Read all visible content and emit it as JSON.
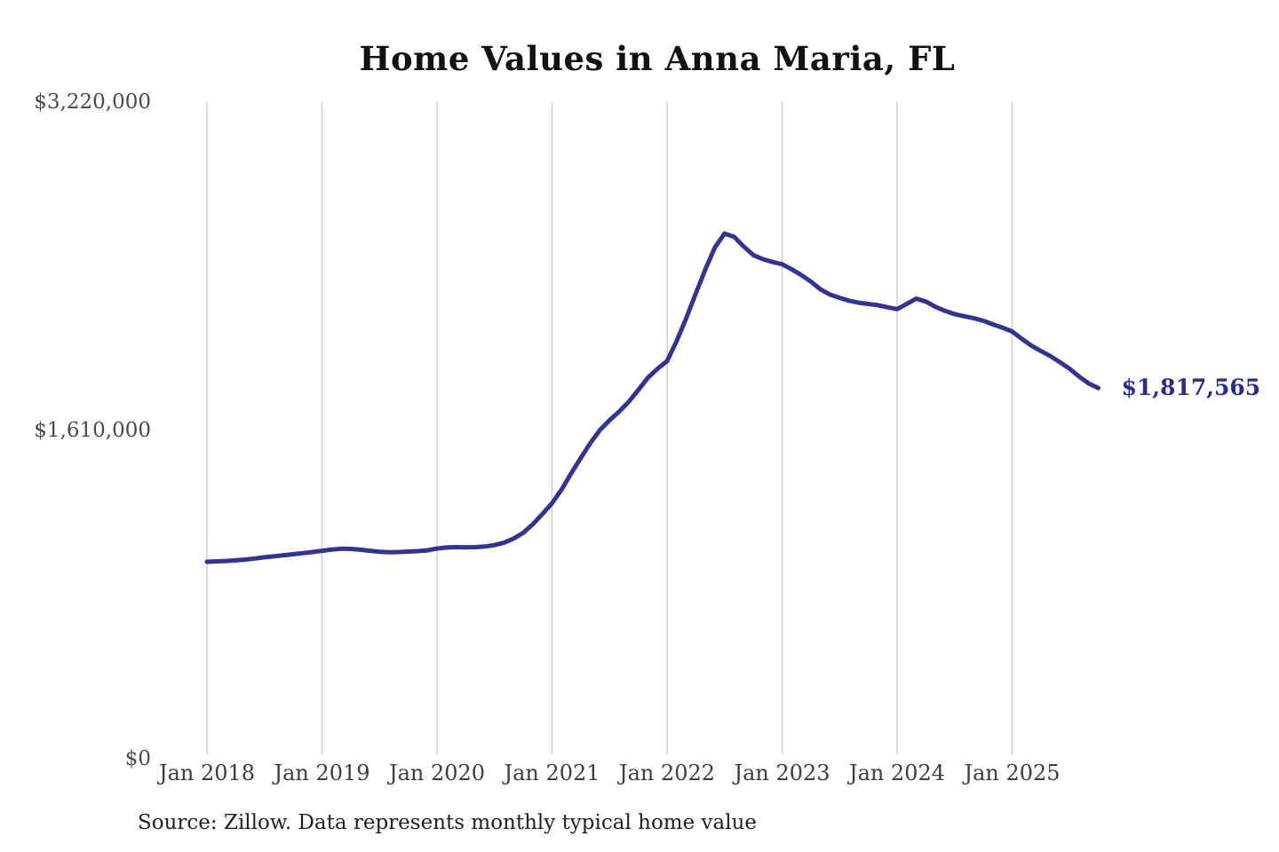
{
  "title": "Home Values in Anna Maria, FL",
  "source_note": "Source: Zillow. Data represents monthly typical home value",
  "end_label": "$1,817,565",
  "colors": {
    "line": "#34348f",
    "end_label": "#2d2d85",
    "gridline": "#cfcfcf",
    "axis_text": "#3d3d3d",
    "title_text": "#111111"
  },
  "chart_data": {
    "type": "line",
    "title": "Home Values in Anna Maria, FL",
    "x_tick_labels": [
      "Jan 2018",
      "Jan 2019",
      "Jan 2020",
      "Jan 2021",
      "Jan 2022",
      "Jan 2023",
      "Jan 2024",
      "Jan 2025"
    ],
    "y_ticks": [
      {
        "label": "$0",
        "value": 0
      },
      {
        "label": "$1,610,000",
        "value": 1610000
      },
      {
        "label": "$3,220,000",
        "value": 3220000
      }
    ],
    "ylim": [
      0,
      3220000
    ],
    "x_start": "2018-01",
    "x_end": "2025-10",
    "x_freq": "monthly",
    "unit": "USD",
    "grid": "vertical-only",
    "legend": "none",
    "latest_value": 1817565,
    "values": [
      966000,
      968000,
      970000,
      973000,
      977000,
      982000,
      988000,
      993000,
      998000,
      1003000,
      1008000,
      1014000,
      1020000,
      1026000,
      1030000,
      1029000,
      1025000,
      1020000,
      1015000,
      1013000,
      1014000,
      1016000,
      1018000,
      1022000,
      1031000,
      1036000,
      1038000,
      1037000,
      1038000,
      1041000,
      1048000,
      1060000,
      1080000,
      1108000,
      1150000,
      1200000,
      1253000,
      1320000,
      1400000,
      1475000,
      1548000,
      1612000,
      1660000,
      1702000,
      1750000,
      1808000,
      1868000,
      1912000,
      1950000,
      2048000,
      2160000,
      2282000,
      2400000,
      2508000,
      2575000,
      2560000,
      2512000,
      2470000,
      2450000,
      2436000,
      2425000,
      2400000,
      2372000,
      2340000,
      2302000,
      2276000,
      2260000,
      2246000,
      2236000,
      2230000,
      2224000,
      2214000,
      2205000,
      2230000,
      2256000,
      2242000,
      2216000,
      2196000,
      2180000,
      2170000,
      2160000,
      2148000,
      2130000,
      2114000,
      2095000,
      2060000,
      2026000,
      2000000,
      1974000,
      1944000,
      1912000,
      1874000,
      1840000,
      1817565
    ]
  }
}
